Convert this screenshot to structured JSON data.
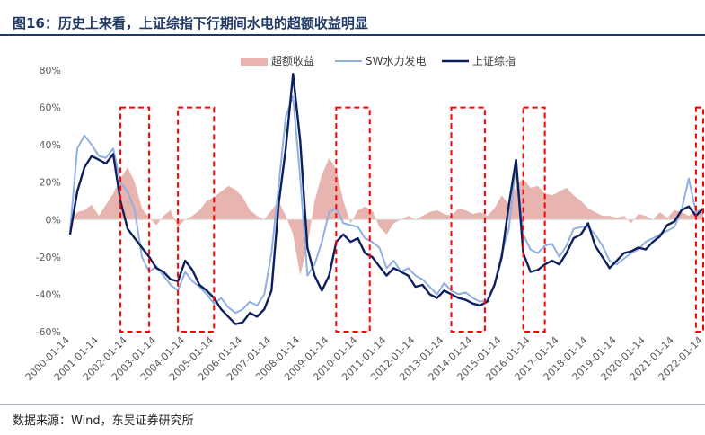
{
  "figure": {
    "title": "图16：历史上来看，上证综指下行期间水电的超额收益明显",
    "source": "数据来源：Wind，东吴证券研究所"
  },
  "colors": {
    "excess": "#e8b4b0",
    "hydro": "#8fb0e0",
    "index": "#0d1f5c",
    "box": "#ff0000"
  },
  "chart_data": {
    "type": "line",
    "title": "",
    "xlabel": "",
    "ylabel": "",
    "ylim": [
      -0.6,
      0.8
    ],
    "y_ticks": [
      "80%",
      "60%",
      "40%",
      "20%",
      "0%",
      "-20%",
      "-40%",
      "-60%"
    ],
    "x_ticks": [
      "2000-01-14",
      "2001-01-14",
      "2002-01-14",
      "2003-01-14",
      "2004-01-14",
      "2005-01-14",
      "2006-01-14",
      "2007-01-14",
      "2008-01-14",
      "2009-01-14",
      "2010-01-14",
      "2011-01-14",
      "2012-01-14",
      "2013-01-14",
      "2014-01-14",
      "2015-01-14",
      "2016-01-14",
      "2017-01-14",
      "2018-01-14",
      "2019-01-14",
      "2020-01-14",
      "2021-01-14",
      "2022-01-14"
    ],
    "x_range": [
      "2000-01-14",
      "2022-01-14"
    ],
    "legend": [
      "超额收益",
      "SW水力发电",
      "上证综指"
    ],
    "legend_position": "top",
    "x": [
      "2000-01",
      "2000-04",
      "2000-07",
      "2000-10",
      "2001-01",
      "2001-04",
      "2001-07",
      "2001-10",
      "2002-01",
      "2002-04",
      "2002-07",
      "2002-10",
      "2003-01",
      "2003-04",
      "2003-07",
      "2003-10",
      "2004-01",
      "2004-04",
      "2004-07",
      "2004-10",
      "2005-01",
      "2005-04",
      "2005-07",
      "2005-10",
      "2006-01",
      "2006-04",
      "2006-07",
      "2006-10",
      "2007-01",
      "2007-04",
      "2007-07",
      "2007-10",
      "2008-01",
      "2008-04",
      "2008-07",
      "2008-10",
      "2009-01",
      "2009-04",
      "2009-07",
      "2009-10",
      "2010-01",
      "2010-04",
      "2010-07",
      "2010-10",
      "2011-01",
      "2011-04",
      "2011-07",
      "2011-10",
      "2012-01",
      "2012-04",
      "2012-07",
      "2012-10",
      "2013-01",
      "2013-04",
      "2013-07",
      "2013-10",
      "2014-01",
      "2014-04",
      "2014-07",
      "2014-10",
      "2015-01",
      "2015-04",
      "2015-07",
      "2015-10",
      "2016-01",
      "2016-04",
      "2016-07",
      "2016-10",
      "2017-01",
      "2017-04",
      "2017-07",
      "2017-10",
      "2018-01",
      "2018-04",
      "2018-07",
      "2018-10",
      "2019-01",
      "2019-04",
      "2019-07",
      "2019-10",
      "2020-01",
      "2020-04",
      "2020-07",
      "2020-10",
      "2021-01",
      "2021-04",
      "2021-07",
      "2021-10",
      "2022-01"
    ],
    "series": [
      {
        "name": "超额收益",
        "kind": "area",
        "values": [
          -0.02,
          0.04,
          0.05,
          0.08,
          0.02,
          0.08,
          0.14,
          0.22,
          0.28,
          0.2,
          0.06,
          0.01,
          -0.03,
          0.02,
          0.05,
          -0.04,
          0.0,
          0.02,
          0.05,
          0.1,
          0.12,
          0.15,
          0.18,
          0.16,
          0.12,
          0.05,
          0.02,
          0.0,
          0.05,
          0.1,
          0.02,
          -0.08,
          -0.3,
          -0.14,
          0.1,
          0.24,
          0.33,
          0.27,
          0.1,
          -0.02,
          0.05,
          0.07,
          0.05,
          -0.04,
          -0.08,
          -0.02,
          0.0,
          0.02,
          0.0,
          0.02,
          0.04,
          0.05,
          0.03,
          0.02,
          0.06,
          0.05,
          0.03,
          0.04,
          0.02,
          0.06,
          0.13,
          0.08,
          0.18,
          0.22,
          0.17,
          0.18,
          0.14,
          0.13,
          0.15,
          0.17,
          0.13,
          0.1,
          0.06,
          0.04,
          0.02,
          0.02,
          0.01,
          0.02,
          -0.02,
          0.03,
          0.02,
          0.0,
          0.04,
          0.01,
          0.05,
          0.04,
          0.02,
          0.05,
          0.06
        ]
      },
      {
        "name": "SW水力发电",
        "kind": "line",
        "values": [
          -0.06,
          0.38,
          0.45,
          0.4,
          0.34,
          0.33,
          0.38,
          0.2,
          0.15,
          0.05,
          -0.2,
          -0.28,
          -0.25,
          -0.3,
          -0.35,
          -0.38,
          -0.28,
          -0.33,
          -0.36,
          -0.4,
          -0.45,
          -0.42,
          -0.47,
          -0.5,
          -0.48,
          -0.44,
          -0.46,
          -0.4,
          -0.18,
          0.18,
          0.55,
          0.66,
          0.22,
          -0.3,
          -0.24,
          -0.12,
          0.04,
          0.06,
          -0.02,
          -0.03,
          -0.04,
          -0.1,
          -0.12,
          -0.15,
          -0.26,
          -0.22,
          -0.28,
          -0.26,
          -0.3,
          -0.32,
          -0.36,
          -0.4,
          -0.34,
          -0.38,
          -0.4,
          -0.39,
          -0.42,
          -0.44,
          -0.43,
          -0.35,
          -0.18,
          -0.05,
          0.3,
          -0.08,
          -0.16,
          -0.18,
          -0.14,
          -0.13,
          -0.2,
          -0.14,
          -0.05,
          -0.04,
          -0.04,
          -0.08,
          -0.14,
          -0.22,
          -0.24,
          -0.21,
          -0.18,
          -0.16,
          -0.12,
          -0.1,
          -0.08,
          -0.06,
          -0.04,
          0.05,
          0.22,
          0.04,
          0.05
        ]
      },
      {
        "name": "上证综指",
        "kind": "line",
        "values": [
          -0.08,
          0.15,
          0.28,
          0.34,
          0.32,
          0.3,
          0.35,
          0.1,
          -0.05,
          -0.1,
          -0.15,
          -0.2,
          -0.26,
          -0.28,
          -0.32,
          -0.33,
          -0.22,
          -0.27,
          -0.35,
          -0.38,
          -0.42,
          -0.48,
          -0.52,
          -0.56,
          -0.55,
          -0.5,
          -0.52,
          -0.48,
          -0.38,
          0.08,
          0.38,
          0.78,
          0.42,
          -0.15,
          -0.3,
          -0.38,
          -0.3,
          -0.12,
          -0.08,
          -0.12,
          -0.1,
          -0.18,
          -0.2,
          -0.25,
          -0.3,
          -0.26,
          -0.28,
          -0.3,
          -0.36,
          -0.35,
          -0.4,
          -0.42,
          -0.38,
          -0.4,
          -0.42,
          -0.43,
          -0.45,
          -0.46,
          -0.44,
          -0.35,
          -0.2,
          0.08,
          0.32,
          -0.18,
          -0.28,
          -0.27,
          -0.24,
          -0.22,
          -0.24,
          -0.18,
          -0.1,
          -0.08,
          -0.02,
          -0.14,
          -0.2,
          -0.26,
          -0.22,
          -0.18,
          -0.17,
          -0.15,
          -0.16,
          -0.12,
          -0.09,
          -0.03,
          -0.01,
          0.05,
          0.07,
          0.02,
          0.06
        ]
      }
    ],
    "boxes": [
      [
        "2001-10",
        "2002-10"
      ],
      [
        "2003-10",
        "2005-01"
      ],
      [
        "2009-04",
        "2010-06"
      ],
      [
        "2013-04",
        "2014-06"
      ],
      [
        "2015-10",
        "2016-07"
      ],
      [
        "2021-10",
        "2022-01"
      ]
    ]
  }
}
